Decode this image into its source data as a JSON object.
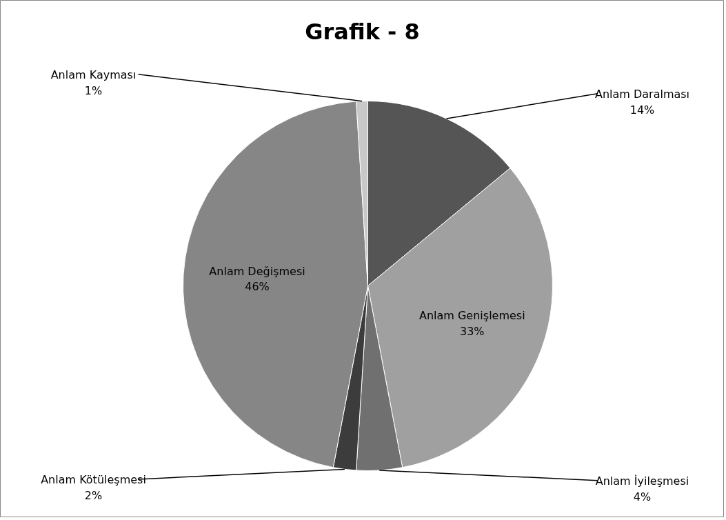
{
  "chart_data": {
    "type": "pie",
    "title": "Grafik - 8",
    "categories": [
      "Anlam Daralması",
      "Anlam Genişlemesi",
      "Anlam İyileşmesi",
      "Anlam Kötüleşmesi",
      "Anlam Değişmesi",
      "Anlam Kayması"
    ],
    "values": [
      14,
      33,
      4,
      2,
      46,
      1
    ],
    "value_labels": [
      "14%",
      "33%",
      "4%",
      "2%",
      "46%",
      "1%"
    ],
    "colors": [
      "#555555",
      "#a0a0a0",
      "#707070",
      "#3c3c3c",
      "#868686",
      "#c8c8c8"
    ]
  }
}
